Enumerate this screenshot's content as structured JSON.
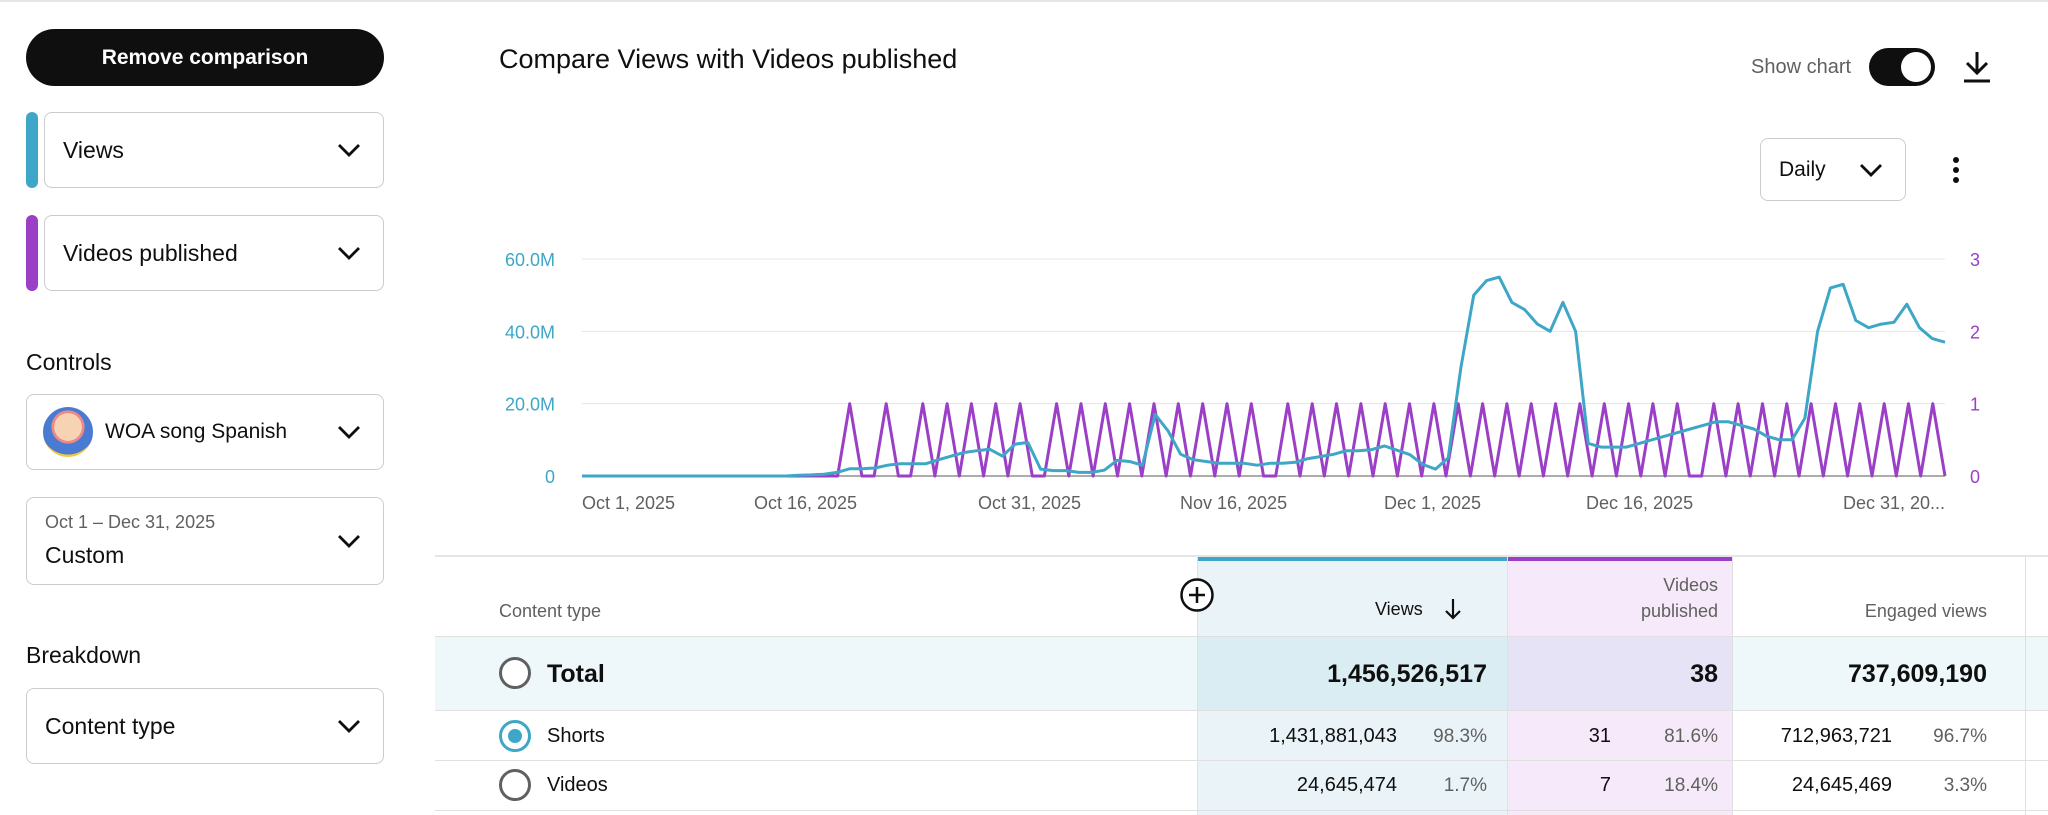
{
  "sidebar": {
    "remove_comparison_label": "Remove comparison",
    "metric1": {
      "label": "Views",
      "color": "#3ea6c6"
    },
    "metric2": {
      "label": "Videos published",
      "color": "#9b3fc7"
    },
    "controls_title": "Controls",
    "channel_name": "WOA song Spanish",
    "date_range_small": "Oct 1 – Dec 31, 2025",
    "date_range_big": "Custom",
    "breakdown_title": "Breakdown",
    "breakdown_value": "Content type"
  },
  "header": {
    "title": "Compare Views with Videos published",
    "show_chart_label": "Show chart",
    "show_chart_on": true,
    "granularity": "Daily"
  },
  "chart_data": {
    "type": "line",
    "x_tick_labels": [
      "Oct 1, 2025",
      "Oct 16, 2025",
      "Oct 31, 2025",
      "Nov 16, 2025",
      "Dec 1, 2025",
      "Dec 16, 2025",
      "Dec 31, 20..."
    ],
    "y_left_ticks": [
      "0",
      "20.0M",
      "40.0M",
      "60.0M"
    ],
    "y_right_ticks": [
      "0",
      "1",
      "2",
      "3"
    ],
    "ylim_left": [
      0,
      60000000
    ],
    "ylim_right": [
      0,
      3
    ],
    "x_range": [
      "2025-10-01",
      "2025-12-31"
    ],
    "grid": true,
    "series": [
      {
        "name": "Views",
        "axis": "left",
        "color": "#3ea6c6",
        "values": [
          0,
          0,
          0,
          0,
          0,
          0,
          0,
          0,
          0,
          0,
          0,
          0,
          0,
          0,
          0,
          0,
          0,
          200000,
          300000,
          500000,
          1000000,
          2000000,
          2000000,
          2200000,
          3000000,
          3400000,
          3400000,
          3400000,
          4500000,
          5500000,
          6500000,
          7000000,
          7400000,
          5500000,
          8800000,
          9300000,
          1900000,
          1500000,
          1500000,
          1000000,
          1000000,
          1600000,
          4300000,
          4000000,
          3000000,
          17000000,
          12500000,
          6000000,
          4500000,
          4000000,
          3500000,
          3500000,
          3500000,
          3000000,
          3500000,
          3500000,
          3800000,
          4800000,
          5400000,
          6000000,
          7000000,
          7000000,
          7300000,
          8300000,
          7100000,
          5900000,
          3200000,
          1900000,
          5000000,
          30000000,
          50000000,
          54000000,
          55000000,
          48000000,
          46000000,
          42000000,
          40000000,
          48000000,
          40000000,
          9000000,
          8000000,
          8000000,
          8000000,
          9000000,
          10000000,
          11000000,
          12000000,
          13000000,
          14000000,
          15000000,
          15000000,
          14000000,
          13000000,
          11000000,
          10000000,
          10000000,
          16000000,
          40000000,
          52000000,
          53000000,
          43000000,
          41000000,
          42000000,
          42500000,
          47500000,
          41000000,
          38000000,
          37000000
        ],
        "note_values": "daily views approximated from the plotted line"
      },
      {
        "name": "Videos published",
        "axis": "right",
        "color": "#9b3fc7",
        "values": [
          0,
          0,
          0,
          0,
          0,
          0,
          0,
          0,
          0,
          0,
          0,
          0,
          0,
          0,
          0,
          0,
          0,
          0,
          0,
          0,
          0,
          0,
          1,
          0,
          0,
          1,
          0,
          0,
          1,
          0,
          1,
          0,
          1,
          0,
          1,
          0,
          1,
          0,
          0,
          1,
          0,
          1,
          0,
          1,
          0,
          1,
          0,
          1,
          0,
          1,
          0,
          1,
          0,
          1,
          0,
          1,
          0,
          0,
          1,
          0,
          1,
          0,
          1,
          0,
          1,
          0,
          1,
          0,
          1,
          0,
          1,
          0,
          1,
          0,
          1,
          0,
          1,
          0,
          1,
          0,
          1,
          0,
          1,
          0,
          1,
          0,
          1,
          0,
          1,
          0,
          1,
          0,
          0,
          1,
          0,
          1,
          0,
          1,
          0,
          1,
          0,
          1,
          0,
          1,
          0,
          1,
          0,
          1,
          0,
          1,
          0,
          1,
          0
        ]
      }
    ]
  },
  "table": {
    "columns": {
      "content_type": "Content type",
      "views": "Views",
      "videos_published_line1": "Videos",
      "videos_published_line2": "published",
      "engaged_views": "Engaged views"
    },
    "total": {
      "label": "Total",
      "views": "1,456,526,517",
      "videos_published": "38",
      "engaged_views": "737,609,190"
    },
    "rows": [
      {
        "label": "Shorts",
        "selected": true,
        "views": "1,431,881,043",
        "views_pct": "98.3%",
        "videos_published": "31",
        "videos_published_pct": "81.6%",
        "engaged_views": "712,963,721",
        "engaged_views_pct": "96.7%"
      },
      {
        "label": "Videos",
        "selected": false,
        "views": "24,645,474",
        "views_pct": "1.7%",
        "videos_published": "7",
        "videos_published_pct": "18.4%",
        "engaged_views": "24,645,469",
        "engaged_views_pct": "3.3%"
      }
    ]
  }
}
